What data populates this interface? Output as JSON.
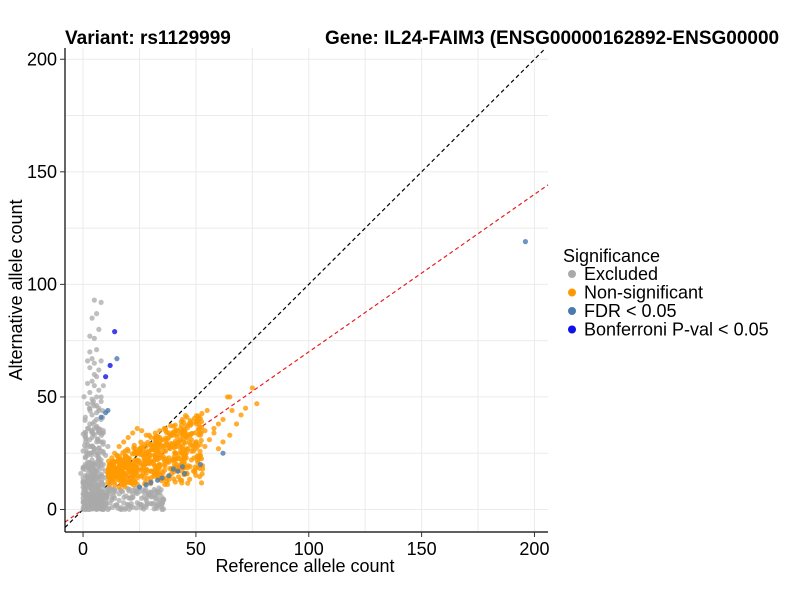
{
  "header": {
    "variant_title": "Variant: rs1129999",
    "gene_title": "Gene: IL24-FAIM3 (ENSG00000162892-ENSG00000"
  },
  "chart_data": {
    "type": "scatter",
    "title": "Variant: rs1129999          Gene: IL24-FAIM3 (ENSG00000162892-ENSG00000",
    "xlabel": "Reference allele count",
    "ylabel": "Alternative allele count",
    "xlim": [
      -8,
      206
    ],
    "ylim": [
      -10,
      205
    ],
    "xticks": [
      0,
      50,
      100,
      150,
      200
    ],
    "yticks": [
      0,
      50,
      100,
      150,
      200
    ],
    "grid": true,
    "legend": {
      "title": "Significance",
      "position": "right",
      "entries": [
        "Excluded",
        "Non-significant",
        "FDR < 0.05",
        "Bonferroni P-val < 0.05"
      ]
    },
    "colors": {
      "Excluded": "#aaaaaa",
      "Non-significant": "#ff9a00",
      "FDR < 0.05": "#4a7ab0",
      "Bonferroni P-val < 0.05": "#1010e8",
      "identity_line": "#000000",
      "fit_line": "#e81c1c"
    },
    "reference_lines": [
      {
        "name": "identity",
        "slope": 1,
        "intercept": 0,
        "style": "dashed",
        "color": "#000000"
      },
      {
        "name": "fit",
        "slope": 0.7,
        "intercept": 0,
        "style": "dashed",
        "color": "#e81c1c"
      }
    ],
    "series": [
      {
        "name": "Excluded",
        "points": [
          [
            5,
            93
          ],
          [
            8,
            92
          ],
          [
            6,
            87
          ],
          [
            4,
            85
          ],
          [
            7,
            80
          ],
          [
            3,
            77
          ],
          [
            5,
            76
          ],
          [
            6,
            71
          ],
          [
            4,
            67
          ],
          [
            2,
            66
          ],
          [
            8,
            66
          ],
          [
            5,
            65
          ],
          [
            3,
            63
          ],
          [
            7,
            62
          ],
          [
            6,
            59
          ],
          [
            4,
            57
          ],
          [
            2,
            56
          ],
          [
            5,
            55
          ],
          [
            7,
            53
          ],
          [
            3,
            52
          ],
          [
            6,
            50
          ],
          [
            4,
            49
          ],
          [
            8,
            48
          ],
          [
            2,
            47
          ],
          [
            5,
            46
          ],
          [
            3,
            45
          ],
          [
            7,
            44
          ],
          [
            6,
            43
          ],
          [
            4,
            42
          ],
          [
            1,
            41
          ],
          [
            8,
            40
          ],
          [
            5,
            39
          ],
          [
            3,
            38
          ],
          [
            6,
            37
          ],
          [
            2,
            36
          ],
          [
            7,
            35
          ],
          [
            4,
            34
          ],
          [
            9,
            34
          ],
          [
            5,
            33
          ],
          [
            1,
            32
          ],
          [
            3,
            31
          ],
          [
            6,
            30
          ],
          [
            8,
            30
          ],
          [
            2,
            29
          ],
          [
            4,
            28
          ],
          [
            7,
            27
          ],
          [
            5,
            26
          ],
          [
            0,
            26
          ],
          [
            3,
            25
          ],
          [
            9,
            25
          ],
          [
            6,
            24
          ],
          [
            1,
            23
          ],
          [
            4,
            22
          ],
          [
            8,
            22
          ],
          [
            2,
            21
          ],
          [
            5,
            20
          ],
          [
            7,
            19
          ],
          [
            3,
            18
          ],
          [
            0,
            18
          ],
          [
            6,
            17
          ],
          [
            10,
            17
          ],
          [
            4,
            16
          ],
          [
            1,
            15
          ],
          [
            8,
            15
          ],
          [
            2,
            14
          ],
          [
            5,
            13
          ],
          [
            7,
            12
          ],
          [
            3,
            11
          ],
          [
            9,
            11
          ],
          [
            0,
            10
          ],
          [
            6,
            10
          ],
          [
            4,
            9
          ],
          [
            11,
            9
          ],
          [
            1,
            8
          ],
          [
            8,
            8
          ],
          [
            2,
            7
          ],
          [
            5,
            7
          ],
          [
            12,
            7
          ],
          [
            3,
            6
          ],
          [
            7,
            6
          ],
          [
            10,
            6
          ],
          [
            0,
            5
          ],
          [
            6,
            5
          ],
          [
            14,
            5
          ],
          [
            4,
            4
          ],
          [
            9,
            4
          ],
          [
            16,
            4
          ],
          [
            1,
            3
          ],
          [
            8,
            3
          ],
          [
            12,
            3
          ],
          [
            18,
            3
          ],
          [
            2,
            2
          ],
          [
            5,
            2
          ],
          [
            10,
            2
          ],
          [
            15,
            2
          ],
          [
            20,
            2
          ],
          [
            3,
            1
          ],
          [
            7,
            1
          ],
          [
            13,
            1
          ],
          [
            22,
            1
          ],
          [
            0,
            0
          ],
          [
            6,
            0
          ],
          [
            11,
            0
          ],
          [
            17,
            0
          ],
          [
            35,
            0
          ],
          [
            24,
            3
          ],
          [
            26,
            5
          ],
          [
            28,
            4
          ],
          [
            30,
            6
          ],
          [
            32,
            5
          ],
          [
            34,
            4
          ],
          [
            22,
            7
          ],
          [
            25,
            8
          ],
          [
            19,
            6
          ],
          [
            21,
            5
          ],
          [
            16,
            7
          ],
          [
            14,
            9
          ],
          [
            12,
            12
          ],
          [
            10,
            14
          ],
          [
            9,
            20
          ],
          [
            10,
            24
          ],
          [
            11,
            28
          ],
          [
            9,
            30
          ],
          [
            8,
            26
          ],
          [
            7,
            23
          ],
          [
            6,
            21
          ],
          [
            5,
            18
          ],
          [
            4,
            14
          ],
          [
            3,
            12
          ],
          [
            2,
            10
          ],
          [
            1,
            12
          ],
          [
            0,
            14
          ],
          [
            -1,
            16
          ],
          [
            1,
            20
          ],
          [
            2,
            24
          ],
          [
            3,
            28
          ],
          [
            4,
            32
          ],
          [
            5,
            36
          ],
          [
            6,
            40
          ],
          [
            7,
            45
          ],
          [
            8,
            50
          ],
          [
            9,
            55
          ],
          [
            5,
            60
          ],
          [
            3,
            70
          ]
        ]
      },
      {
        "name": "Non-significant",
        "points": [
          [
            11,
            12
          ],
          [
            12,
            15
          ],
          [
            13,
            18
          ],
          [
            14,
            21
          ],
          [
            15,
            24
          ],
          [
            16,
            14
          ],
          [
            17,
            17
          ],
          [
            18,
            20
          ],
          [
            19,
            23
          ],
          [
            20,
            26
          ],
          [
            21,
            12
          ],
          [
            22,
            16
          ],
          [
            23,
            19
          ],
          [
            24,
            22
          ],
          [
            25,
            25
          ],
          [
            26,
            28
          ],
          [
            27,
            14
          ],
          [
            28,
            18
          ],
          [
            29,
            21
          ],
          [
            30,
            24
          ],
          [
            31,
            27
          ],
          [
            32,
            30
          ],
          [
            33,
            16
          ],
          [
            34,
            20
          ],
          [
            35,
            23
          ],
          [
            36,
            26
          ],
          [
            37,
            29
          ],
          [
            38,
            32
          ],
          [
            39,
            18
          ],
          [
            40,
            22
          ],
          [
            41,
            25
          ],
          [
            42,
            28
          ],
          [
            43,
            31
          ],
          [
            44,
            20
          ],
          [
            45,
            24
          ],
          [
            46,
            27
          ],
          [
            47,
            30
          ],
          [
            48,
            22
          ],
          [
            49,
            26
          ],
          [
            50,
            29
          ],
          [
            52,
            24
          ],
          [
            54,
            28
          ],
          [
            56,
            31
          ],
          [
            58,
            34
          ],
          [
            60,
            27
          ],
          [
            62,
            30
          ],
          [
            65,
            33
          ],
          [
            68,
            38
          ],
          [
            70,
            42
          ],
          [
            75,
            54
          ],
          [
            77,
            47
          ],
          [
            64,
            50
          ],
          [
            65,
            50
          ],
          [
            55,
            44
          ],
          [
            50,
            39
          ],
          [
            45,
            35
          ],
          [
            40,
            33
          ],
          [
            35,
            31
          ],
          [
            30,
            29
          ],
          [
            25,
            27
          ],
          [
            20,
            22
          ],
          [
            15,
            18
          ],
          [
            13,
            13
          ],
          [
            14,
            11
          ],
          [
            16,
            10
          ],
          [
            18,
            11
          ],
          [
            20,
            12
          ],
          [
            22,
            13
          ],
          [
            24,
            14
          ],
          [
            26,
            15
          ],
          [
            28,
            16
          ],
          [
            30,
            17
          ],
          [
            32,
            18
          ],
          [
            34,
            19
          ],
          [
            36,
            20
          ],
          [
            38,
            21
          ],
          [
            12,
            20
          ],
          [
            14,
            25
          ],
          [
            16,
            28
          ],
          [
            18,
            30
          ],
          [
            20,
            32
          ],
          [
            22,
            34
          ],
          [
            24,
            36
          ],
          [
            26,
            35
          ],
          [
            28,
            33
          ],
          [
            30,
            32
          ],
          [
            32,
            34
          ],
          [
            34,
            35
          ],
          [
            36,
            36
          ],
          [
            38,
            34
          ],
          [
            40,
            37
          ],
          [
            42,
            35
          ],
          [
            44,
            33
          ],
          [
            46,
            32
          ],
          [
            48,
            31
          ],
          [
            52,
            33
          ],
          [
            54,
            35
          ],
          [
            58,
            36
          ],
          [
            60,
            38
          ],
          [
            62,
            40
          ],
          [
            66,
            44
          ],
          [
            72,
            45
          ],
          [
            44,
            40
          ],
          [
            46,
            41
          ],
          [
            48,
            38
          ]
        ]
      },
      {
        "name": "FDR < 0.05",
        "points": [
          [
            196,
            119
          ],
          [
            15,
            67
          ],
          [
            10,
            43
          ],
          [
            11,
            44
          ],
          [
            8,
            41
          ],
          [
            62,
            25
          ],
          [
            52,
            20
          ],
          [
            42,
            17
          ],
          [
            38,
            15
          ],
          [
            35,
            14
          ],
          [
            33,
            13
          ],
          [
            30,
            12
          ],
          [
            28,
            11
          ],
          [
            45,
            16
          ],
          [
            40,
            18
          ],
          [
            44,
            19
          ],
          [
            25,
            10
          ]
        ]
      },
      {
        "name": "Bonferroni P-val < 0.05",
        "points": [
          [
            14,
            79
          ],
          [
            12,
            64
          ],
          [
            10,
            59
          ]
        ]
      }
    ]
  }
}
